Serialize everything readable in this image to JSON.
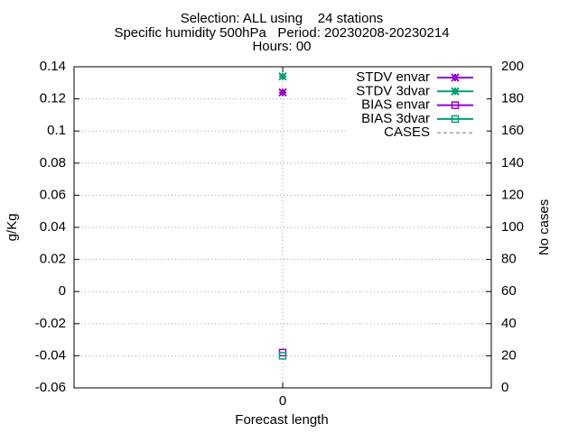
{
  "chart_data": {
    "type": "line",
    "title": [
      "Selection: ALL using    24 stations",
      "Specific humidity 500hPa   Period: 20230208-20230214",
      "Hours: 00"
    ],
    "xlabel": "Forecast length",
    "ylabel": "g/Kg",
    "y2label": "No cases",
    "x": [
      0
    ],
    "xlim": [
      -1,
      1
    ],
    "xticks": [
      0
    ],
    "ylim": [
      -0.06,
      0.14
    ],
    "yticks": [
      -0.06,
      -0.04,
      -0.02,
      0,
      0.02,
      0.04,
      0.06,
      0.08,
      0.1,
      0.12,
      0.14
    ],
    "y2lim": [
      0,
      200
    ],
    "y2ticks": [
      0,
      20,
      40,
      60,
      80,
      100,
      120,
      140,
      160,
      180,
      200
    ],
    "grid": true,
    "legend": "top-right",
    "series": [
      {
        "name": "STDV envar",
        "color": "#9400d3",
        "marker": "star",
        "values": [
          0.124
        ]
      },
      {
        "name": "STDV 3dvar",
        "color": "#009e73",
        "marker": "star",
        "values": [
          0.134
        ]
      },
      {
        "name": "BIAS envar",
        "color": "#9400d3",
        "marker": "square",
        "values": [
          -0.038
        ]
      },
      {
        "name": "BIAS 3dvar",
        "color": "#009e73",
        "marker": "square",
        "values": [
          -0.04
        ]
      },
      {
        "name": "CASES",
        "color": "#888888",
        "dash": true,
        "axis": "y2",
        "values": [
          null
        ]
      }
    ]
  }
}
